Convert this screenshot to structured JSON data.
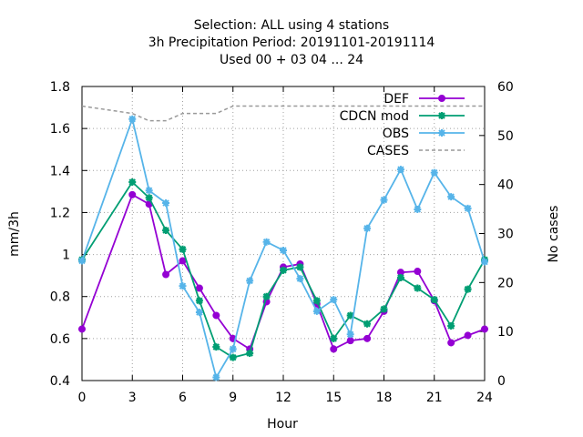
{
  "chart_data": {
    "type": "line",
    "title_lines": [
      "Selection: ALL using     4 stations",
      "3h Precipitation   Period: 20191101-20191114",
      "Used  00 + 03 04 ... 24"
    ],
    "xlabel": "Hour",
    "ylabel": "mm/3h",
    "y2label": "No cases",
    "xlim": [
      0,
      24
    ],
    "ylim": [
      0.4,
      1.8
    ],
    "y2lim": [
      0,
      60
    ],
    "xticks": [
      "0",
      "3",
      "6",
      "9",
      "12",
      "15",
      "18",
      "21",
      "24"
    ],
    "yticks": [
      "0.4",
      "0.6",
      "0.8",
      "1",
      "1.2",
      "1.4",
      "1.6",
      "1.8"
    ],
    "y2ticks": [
      "0",
      "10",
      "20",
      "30",
      "40",
      "50",
      "60"
    ],
    "grid": true,
    "legend_position": "top-right",
    "series": [
      {
        "name": "DEF",
        "color": "#9400d3",
        "marker": "circle",
        "x": [
          0,
          3,
          4,
          5,
          6,
          7,
          8,
          9,
          10,
          11,
          12,
          13,
          14,
          15,
          16,
          17,
          18,
          19,
          20,
          21,
          22,
          23,
          24
        ],
        "y": [
          0.645,
          1.285,
          1.24,
          0.905,
          0.97,
          0.84,
          0.71,
          0.6,
          0.55,
          0.775,
          0.94,
          0.955,
          0.765,
          0.55,
          0.59,
          0.6,
          0.73,
          0.915,
          0.92,
          0.78,
          0.58,
          0.615,
          0.645
        ]
      },
      {
        "name": "CDCN mod",
        "color": "#009e73",
        "marker": "cross",
        "x": [
          0,
          3,
          4,
          5,
          6,
          7,
          8,
          9,
          10,
          11,
          12,
          13,
          14,
          15,
          16,
          17,
          18,
          19,
          20,
          21,
          22,
          23,
          24
        ],
        "y": [
          0.975,
          1.345,
          1.27,
          1.115,
          1.025,
          0.78,
          0.56,
          0.51,
          0.53,
          0.8,
          0.925,
          0.94,
          0.78,
          0.6,
          0.71,
          0.67,
          0.74,
          0.89,
          0.84,
          0.785,
          0.66,
          0.835,
          0.975
        ]
      },
      {
        "name": "OBS",
        "color": "#56b4e9",
        "marker": "star",
        "x": [
          0,
          3,
          4,
          5,
          6,
          7,
          8,
          9,
          10,
          11,
          12,
          13,
          14,
          15,
          16,
          17,
          18,
          19,
          20,
          21,
          22,
          23,
          24
        ],
        "y": [
          0.97,
          1.645,
          1.305,
          1.245,
          0.85,
          0.725,
          0.415,
          0.55,
          0.875,
          1.06,
          1.02,
          0.885,
          0.73,
          0.785,
          0.62,
          1.125,
          1.26,
          1.405,
          1.215,
          1.39,
          1.275,
          1.22,
          0.965
        ]
      },
      {
        "name": "CASES",
        "color": "#999999",
        "marker": "none",
        "dashed": true,
        "axis": "y2",
        "x": [
          0,
          1,
          2,
          3,
          4,
          5,
          6,
          7,
          8,
          9,
          10,
          11,
          12,
          13,
          14,
          15,
          16,
          17,
          18,
          19,
          20,
          21,
          22,
          23,
          24
        ],
        "y": [
          56,
          55.5,
          55,
          54.5,
          53,
          53,
          54.5,
          54.5,
          54.5,
          56,
          56,
          56,
          56,
          56,
          56,
          56,
          56,
          56,
          56,
          56,
          56,
          56,
          56,
          56,
          56
        ]
      }
    ]
  }
}
